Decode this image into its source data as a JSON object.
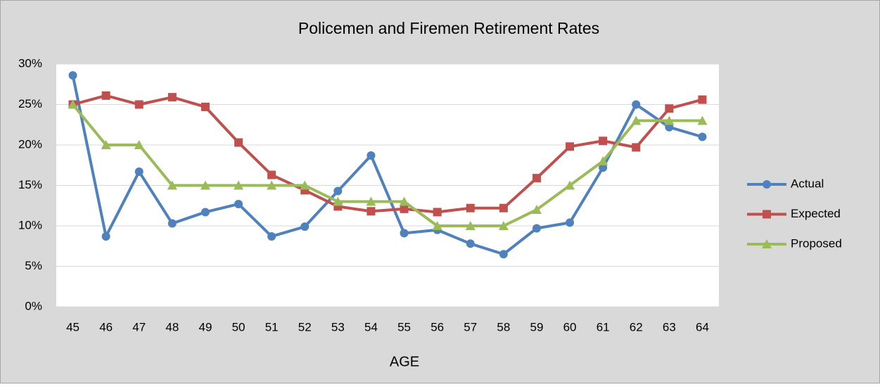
{
  "chart_data": {
    "type": "line",
    "title": "Policemen and Firemen Retirement Rates",
    "x_label": "AGE",
    "categories": [
      "45",
      "46",
      "47",
      "48",
      "49",
      "50",
      "51",
      "52",
      "53",
      "54",
      "55",
      "56",
      "57",
      "58",
      "59",
      "60",
      "61",
      "62",
      "63",
      "64"
    ],
    "series": [
      {
        "name": "Actual",
        "color": "#4f81bd",
        "marker": "circle",
        "values": [
          28.6,
          8.7,
          16.7,
          10.3,
          11.7,
          12.7,
          8.7,
          9.9,
          14.3,
          18.7,
          9.1,
          9.5,
          7.8,
          6.5,
          9.7,
          10.4,
          17.2,
          25.0,
          22.2,
          21.0
        ]
      },
      {
        "name": "Expected",
        "color": "#c0504d",
        "marker": "square",
        "values": [
          25.0,
          26.1,
          25.0,
          25.9,
          24.7,
          20.3,
          16.3,
          14.4,
          12.4,
          11.8,
          12.1,
          11.7,
          12.2,
          12.2,
          15.9,
          19.8,
          20.5,
          19.7,
          24.5,
          25.6
        ]
      },
      {
        "name": "Proposed",
        "color": "#9bbb59",
        "marker": "triangle",
        "values": [
          25,
          20,
          20,
          15,
          15,
          15,
          15,
          15,
          13,
          13,
          13,
          10,
          10,
          10,
          12,
          15,
          18,
          23,
          23,
          23
        ]
      }
    ],
    "ylim": [
      0,
      30
    ],
    "yticks": [
      {
        "value": 0,
        "label": "0%"
      },
      {
        "value": 5,
        "label": "5%"
      },
      {
        "value": 10,
        "label": "10%"
      },
      {
        "value": 15,
        "label": "15%"
      },
      {
        "value": 20,
        "label": "20%"
      },
      {
        "value": 25,
        "label": "25%"
      },
      {
        "value": 30,
        "label": "30%"
      }
    ],
    "grid": true,
    "legend": "right"
  }
}
